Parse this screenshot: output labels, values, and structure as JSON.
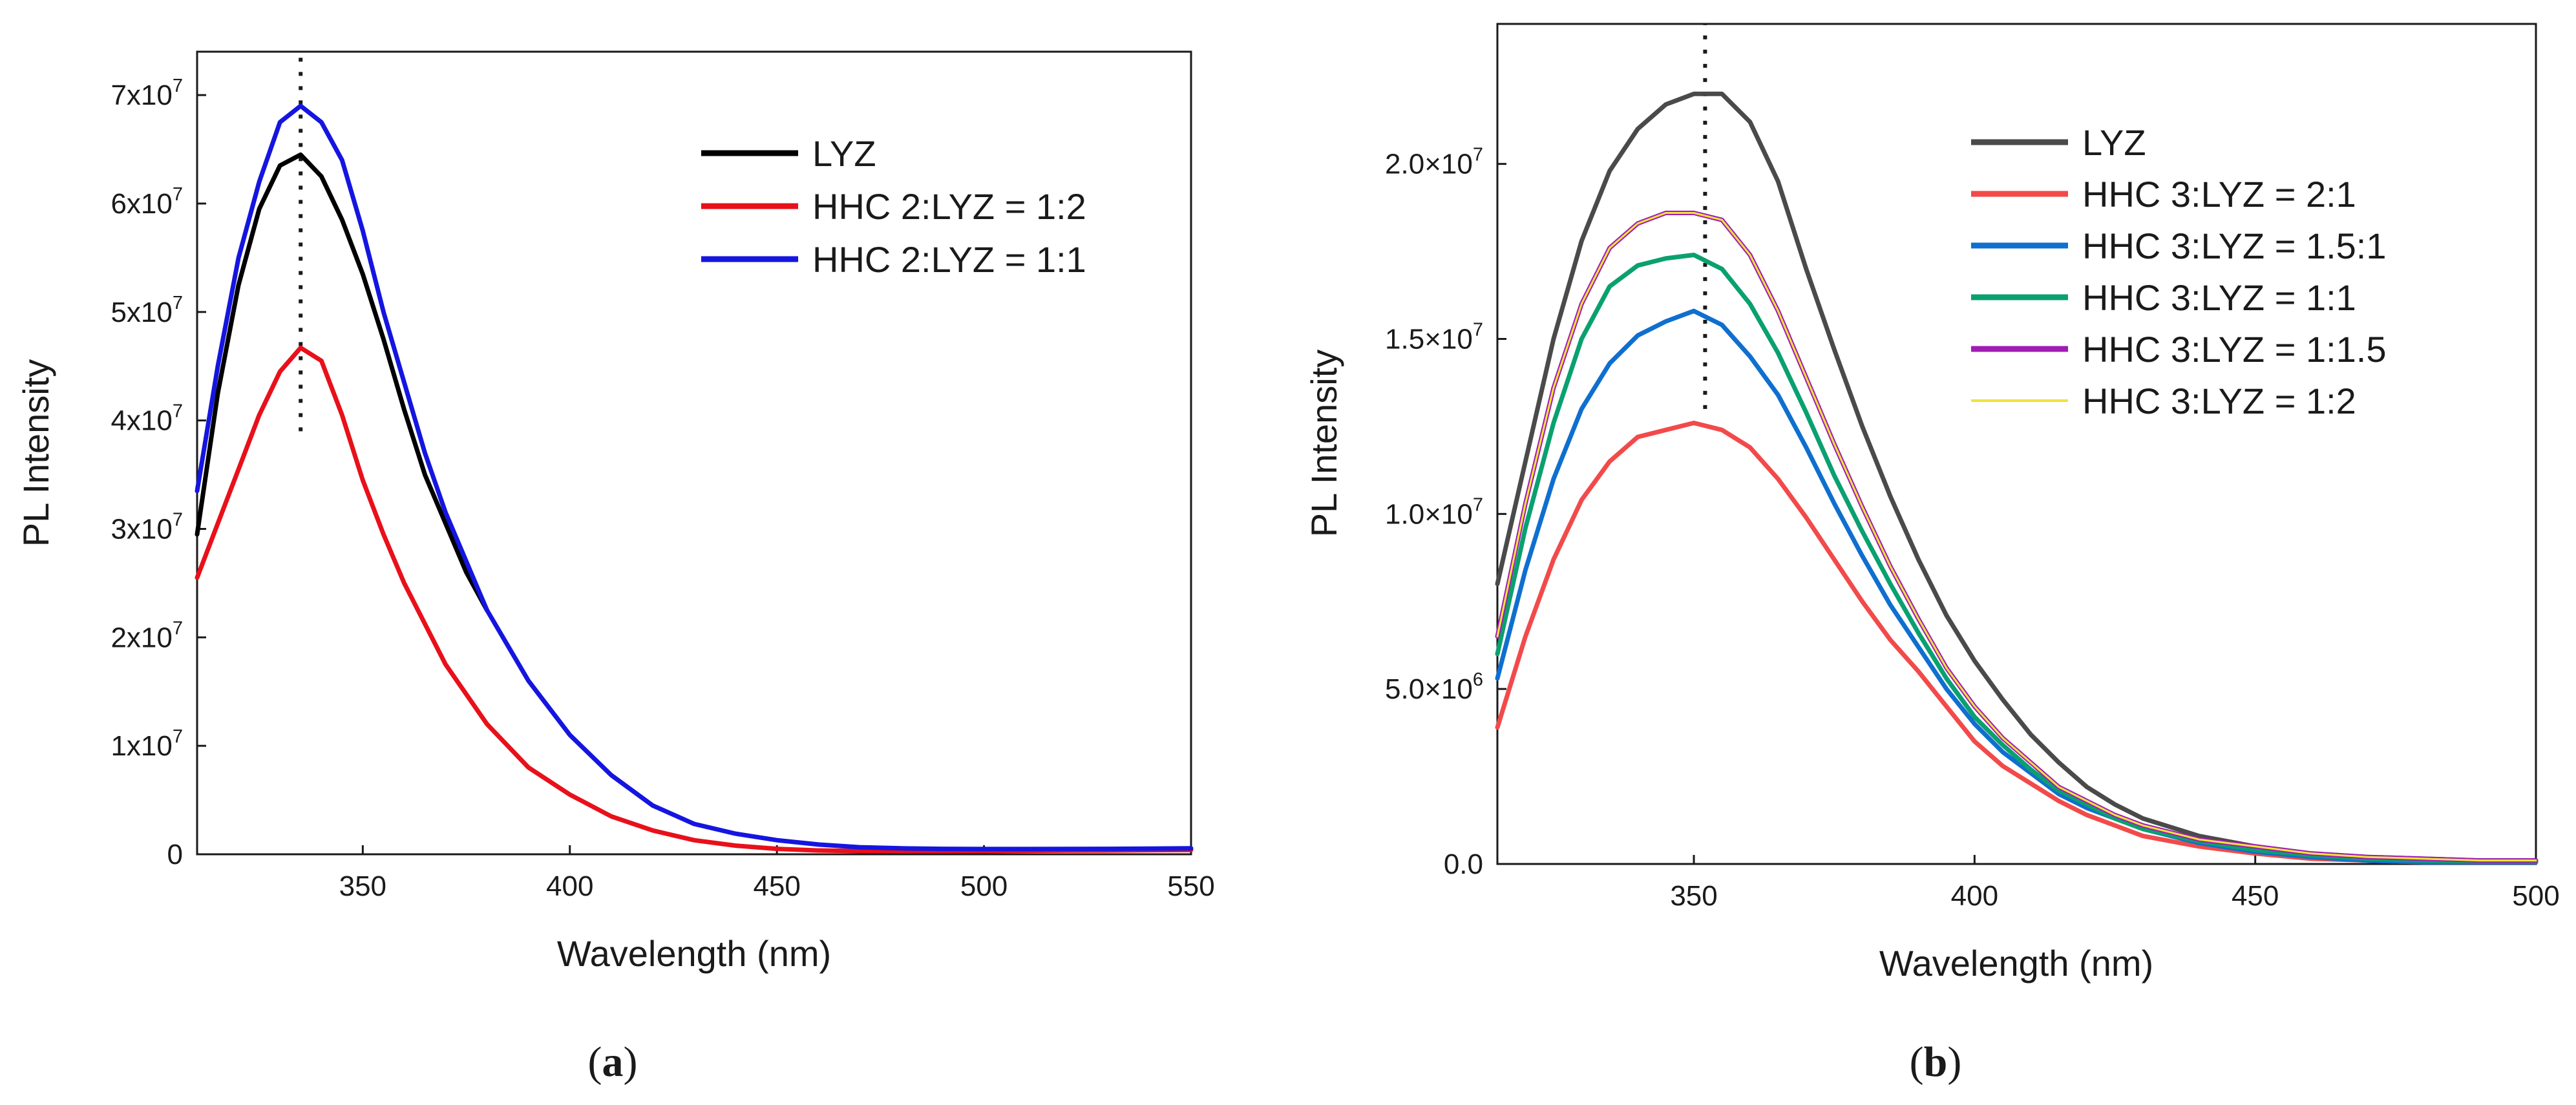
{
  "chart_data": [
    {
      "type": "line",
      "panel_label": "(a)",
      "panel_letter": "a",
      "xlabel": "Wavelength (nm)",
      "ylabel": "PL Intensity",
      "xlim": [
        310,
        550
      ],
      "ylim": [
        0,
        74000000
      ],
      "xticks": [
        {
          "value": 350,
          "label": "350"
        },
        {
          "value": 400,
          "label": "400"
        },
        {
          "value": 450,
          "label": "450"
        },
        {
          "value": 500,
          "label": "500"
        },
        {
          "value": 550,
          "label": "550"
        }
      ],
      "yticks": [
        {
          "value": 0,
          "mantissa": "0",
          "exp": ""
        },
        {
          "value": 10000000,
          "mantissa": "1x10",
          "exp": "7"
        },
        {
          "value": 20000000,
          "mantissa": "2x10",
          "exp": "7"
        },
        {
          "value": 30000000,
          "mantissa": "3x10",
          "exp": "7"
        },
        {
          "value": 40000000,
          "mantissa": "4x10",
          "exp": "7"
        },
        {
          "value": 50000000,
          "mantissa": "5x10",
          "exp": "7"
        },
        {
          "value": 60000000,
          "mantissa": "6x10",
          "exp": "7"
        },
        {
          "value": 70000000,
          "mantissa": "7x10",
          "exp": "7"
        }
      ],
      "peak_marker": {
        "x": 335,
        "y_from": 39000000,
        "y_to": 74000000
      },
      "legend_position": "top-right",
      "series": [
        {
          "name": "LYZ",
          "color": "#000000",
          "x": [
            310,
            315,
            320,
            325,
            330,
            335,
            340,
            345,
            350,
            355,
            360,
            365,
            370,
            375,
            380
          ],
          "y": [
            29500000,
            42500000,
            52500000,
            59500000,
            63500000,
            64500000,
            62500000,
            58500000,
            53500000,
            47500000,
            41000000,
            35000000,
            30500000,
            26000000,
            22500000
          ]
        },
        {
          "name": "HHC 2:LYZ = 1:2",
          "color": "#e8101a",
          "x": [
            310,
            315,
            320,
            325,
            330,
            335,
            340,
            345,
            350,
            355,
            360,
            370,
            380,
            390,
            400,
            410,
            420,
            430,
            440,
            450,
            460,
            470,
            480,
            490,
            500,
            510,
            520,
            530,
            540,
            550
          ],
          "y": [
            25500000,
            30500000,
            35500000,
            40500000,
            44500000,
            46700000,
            45500000,
            40500000,
            34500000,
            29500000,
            25000000,
            17500000,
            12000000,
            8000000,
            5500000,
            3500000,
            2200000,
            1300000,
            800000,
            500000,
            350000,
            300000,
            280000,
            280000,
            300000,
            320000,
            340000,
            350000,
            380000,
            400000
          ]
        },
        {
          "name": "HHC 2:LYZ = 1:1",
          "color": "#1515e0",
          "x": [
            310,
            315,
            320,
            325,
            330,
            335,
            340,
            345,
            350,
            355,
            360,
            365,
            370,
            375,
            380,
            390,
            400,
            410,
            420,
            430,
            440,
            450,
            460,
            470,
            480,
            490,
            500,
            510,
            520,
            530,
            540,
            550
          ],
          "y": [
            33500000,
            45000000,
            55000000,
            62000000,
            67500000,
            69000000,
            67500000,
            64000000,
            57500000,
            50000000,
            43500000,
            37000000,
            31500000,
            27000000,
            22500000,
            16000000,
            11000000,
            7300000,
            4500000,
            2800000,
            1900000,
            1300000,
            900000,
            650000,
            550000,
            500000,
            480000,
            480000,
            490000,
            500000,
            520000,
            550000
          ]
        }
      ]
    },
    {
      "type": "line",
      "panel_label": "(b)",
      "panel_letter": "b",
      "xlabel": "Wavelength (nm)",
      "ylabel": "PL Intensity",
      "xlim": [
        315,
        500
      ],
      "ylim": [
        0,
        24000000
      ],
      "xticks": [
        {
          "value": 350,
          "label": "350"
        },
        {
          "value": 400,
          "label": "400"
        },
        {
          "value": 450,
          "label": "450"
        },
        {
          "value": 500,
          "label": "500"
        }
      ],
      "yticks": [
        {
          "value": 0,
          "mantissa": "0.0",
          "exp": ""
        },
        {
          "value": 5000000,
          "mantissa": "5.0×10",
          "exp": "6"
        },
        {
          "value": 10000000,
          "mantissa": "1.0×10",
          "exp": "7"
        },
        {
          "value": 15000000,
          "mantissa": "1.5×10",
          "exp": "7"
        },
        {
          "value": 20000000,
          "mantissa": "2.0×10",
          "exp": "7"
        }
      ],
      "peak_marker": {
        "x": 352,
        "y_from": 13000000,
        "y_to": 24000000
      },
      "legend_position": "top-right",
      "series": [
        {
          "name": "LYZ",
          "color": "#4a4a4a",
          "x": [
            315,
            320,
            325,
            330,
            335,
            340,
            345,
            350,
            355,
            360,
            365,
            370,
            375,
            380,
            385,
            390,
            395,
            400,
            405,
            410,
            415,
            420,
            425,
            430,
            440,
            450,
            460,
            470,
            480,
            490,
            500
          ],
          "y": [
            8000000,
            11500000,
            15000000,
            17800000,
            19800000,
            21000000,
            21700000,
            22000000,
            22000000,
            21200000,
            19500000,
            17000000,
            14700000,
            12500000,
            10500000,
            8700000,
            7100000,
            5800000,
            4700000,
            3700000,
            2900000,
            2200000,
            1700000,
            1300000,
            800000,
            500000,
            300000,
            200000,
            150000,
            100000,
            100000
          ]
        },
        {
          "name": "HHC 3:LYZ = 2:1",
          "color": "#f24a4a",
          "x": [
            315,
            320,
            325,
            330,
            335,
            340,
            345,
            350,
            355,
            360,
            365,
            370,
            375,
            380,
            385,
            390,
            395,
            400,
            405,
            410,
            415,
            420,
            425,
            430,
            440,
            450,
            460,
            470,
            480,
            490,
            500
          ],
          "y": [
            3900000,
            6500000,
            8700000,
            10400000,
            11500000,
            12200000,
            12400000,
            12600000,
            12400000,
            11900000,
            11000000,
            9900000,
            8700000,
            7500000,
            6400000,
            5500000,
            4500000,
            3500000,
            2800000,
            2300000,
            1800000,
            1400000,
            1100000,
            800000,
            500000,
            300000,
            150000,
            100000,
            50000,
            50000,
            50000
          ]
        },
        {
          "name": "HHC 3:LYZ = 1.5:1",
          "color": "#0f6fcf",
          "x": [
            315,
            320,
            325,
            330,
            335,
            340,
            345,
            350,
            355,
            360,
            365,
            370,
            375,
            380,
            385,
            390,
            395,
            400,
            405,
            410,
            415,
            420,
            425,
            430,
            440,
            450,
            460,
            470,
            480,
            490,
            500
          ],
          "y": [
            5300000,
            8400000,
            11000000,
            13000000,
            14300000,
            15100000,
            15500000,
            15800000,
            15400000,
            14500000,
            13400000,
            11900000,
            10300000,
            8800000,
            7400000,
            6200000,
            5000000,
            4000000,
            3200000,
            2600000,
            2000000,
            1600000,
            1300000,
            1000000,
            600000,
            350000,
            200000,
            100000,
            50000,
            50000,
            50000
          ]
        },
        {
          "name": "HHC 3:LYZ = 1:1",
          "color": "#0aa070",
          "x": [
            315,
            320,
            325,
            330,
            335,
            340,
            345,
            350,
            355,
            360,
            365,
            370,
            375,
            380,
            385,
            390,
            395,
            400,
            405,
            410,
            415,
            420,
            425,
            430,
            440,
            450,
            460,
            470,
            480,
            490,
            500
          ],
          "y": [
            6000000,
            9600000,
            12600000,
            15000000,
            16500000,
            17100000,
            17300000,
            17400000,
            17000000,
            16000000,
            14600000,
            12900000,
            11100000,
            9500000,
            8000000,
            6600000,
            5300000,
            4200000,
            3400000,
            2700000,
            2100000,
            1700000,
            1300000,
            1000000,
            650000,
            400000,
            250000,
            150000,
            100000,
            80000,
            80000
          ]
        },
        {
          "name": "HHC 3:LYZ = 1:1.5",
          "color": "#a01cb5",
          "x": [
            315,
            320,
            325,
            330,
            335,
            340,
            345,
            350,
            355,
            360,
            365,
            370,
            375,
            380,
            385,
            390,
            395,
            400,
            405,
            410,
            415,
            420,
            425,
            430,
            440,
            450,
            460,
            470,
            480,
            490,
            500
          ],
          "y": [
            6500000,
            10300000,
            13600000,
            16000000,
            17600000,
            18300000,
            18600000,
            18600000,
            18400000,
            17400000,
            15800000,
            13900000,
            12000000,
            10200000,
            8500000,
            7000000,
            5600000,
            4500000,
            3600000,
            2900000,
            2200000,
            1800000,
            1400000,
            1100000,
            700000,
            500000,
            300000,
            200000,
            150000,
            100000,
            100000
          ]
        },
        {
          "name": "HHC 3:LYZ = 1:2",
          "color": "#f1e23a",
          "x": [
            315,
            320,
            325,
            330,
            335,
            340,
            345,
            350,
            355,
            360,
            365,
            370,
            375,
            380,
            385,
            390,
            395,
            400,
            405,
            410,
            415,
            420,
            425,
            430,
            440,
            450,
            460,
            470,
            480,
            490,
            500
          ],
          "y": [
            6500000,
            10300000,
            13600000,
            16000000,
            17600000,
            18300000,
            18600000,
            18600000,
            18400000,
            17400000,
            15800000,
            13900000,
            12000000,
            10200000,
            8500000,
            7000000,
            5600000,
            4500000,
            3600000,
            2900000,
            2200000,
            1800000,
            1400000,
            1100000,
            700000,
            500000,
            300000,
            200000,
            150000,
            100000,
            100000
          ]
        }
      ]
    }
  ]
}
